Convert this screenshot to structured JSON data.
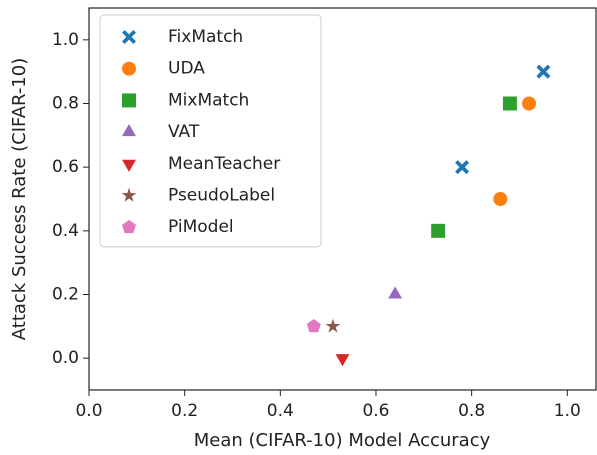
{
  "chart_data": {
    "type": "scatter",
    "x_label": "Mean (CIFAR-10) Model Accuracy",
    "y_label": "Attack Success Rate (CIFAR-10)",
    "xlim": [
      0,
      1.06
    ],
    "ylim": [
      -0.1,
      1.1
    ],
    "xticks": [
      {
        "value": 0,
        "label": "0.0"
      },
      0.2,
      0.4,
      0.6,
      0.8,
      {
        "value": 1,
        "label": "1.0"
      }
    ],
    "yticks": [
      {
        "value": 0,
        "label": "0.0"
      },
      0.2,
      0.4,
      0.6,
      0.8,
      {
        "value": 1,
        "label": "1.0"
      }
    ],
    "legend": "upper left",
    "series": [
      {
        "name": "FixMatch",
        "color": "#1f77b4",
        "marker": "X",
        "x": [
          0.95,
          0.78
        ],
        "values": [
          0.9,
          0.6
        ]
      },
      {
        "name": "UDA",
        "color": "#ff7f0e",
        "marker": "o",
        "x": [
          0.92,
          0.86
        ],
        "values": [
          0.8,
          0.5
        ]
      },
      {
        "name": "MixMatch",
        "color": "#2ca02c",
        "marker": "s",
        "x": [
          0.88,
          0.73
        ],
        "values": [
          0.8,
          0.4
        ]
      },
      {
        "name": "VAT",
        "color": "#9467bd",
        "marker": "^",
        "x": [
          0.64
        ],
        "values": [
          0.2
        ]
      },
      {
        "name": "MeanTeacher",
        "color": "#d62728",
        "marker": "v",
        "x": [
          0.53
        ],
        "values": [
          0.0
        ]
      },
      {
        "name": "PseudoLabel",
        "color": "#8c564b",
        "marker": "*",
        "x": [
          0.51
        ],
        "values": [
          0.1
        ]
      },
      {
        "name": "PiModel",
        "color": "#e377c2",
        "marker": "p",
        "x": [
          0.47
        ],
        "values": [
          0.1
        ]
      }
    ]
  }
}
